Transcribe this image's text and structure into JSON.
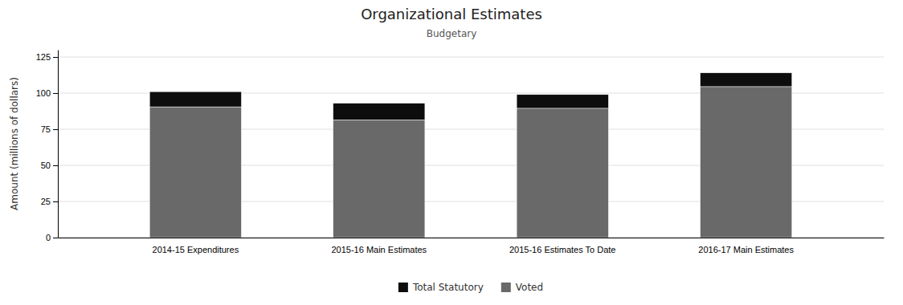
{
  "chart_data": {
    "type": "bar",
    "stacked": true,
    "title": "Organizational Estimates",
    "subtitle": "Budgetary",
    "ylabel": "Amount (millions of dollars)",
    "categories": [
      "2014-15 Expenditures",
      "2015-16 Main Estimates",
      "2015-16 Estimates To Date",
      "2016-17 Main Estimates"
    ],
    "series": [
      {
        "name": "Voted",
        "color": "#696969",
        "values": [
          90.5,
          81.5,
          89.5,
          104.5
        ]
      },
      {
        "name": "Total Statutory",
        "color": "#0d0d0d",
        "values": [
          10.5,
          11.5,
          9.5,
          9.5
        ]
      }
    ],
    "ylim": [
      0,
      130
    ],
    "yticks": [
      0,
      25,
      50,
      75,
      100,
      125
    ],
    "grid": true,
    "legend": "bottom"
  }
}
